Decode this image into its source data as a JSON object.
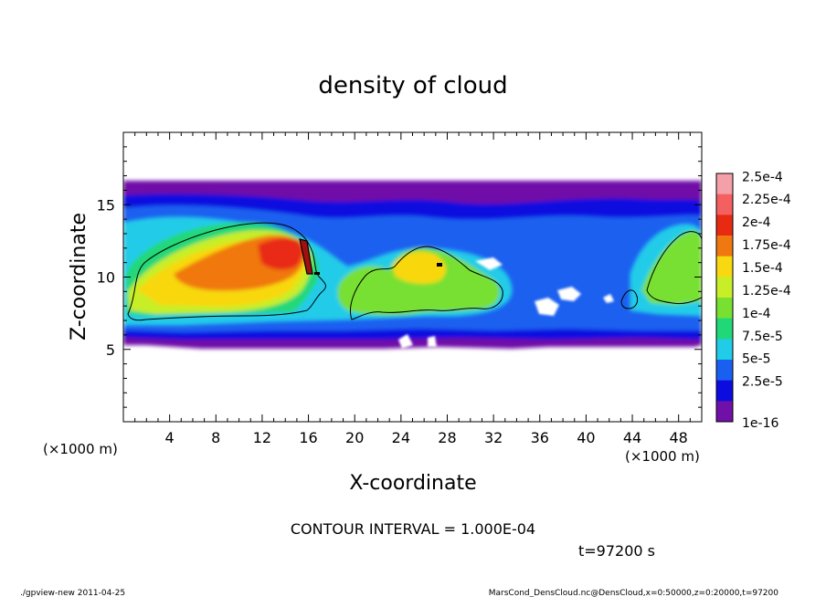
{
  "chart_data": {
    "type": "heatmap",
    "title": "density of cloud",
    "xlabel": "X-coordinate",
    "ylabel": "Z-coordinate",
    "x_unit_label": "(×1000 m)",
    "x_unit_label_right": "(×1000 m)",
    "xlim": [
      0,
      50
    ],
    "ylim": [
      0,
      20
    ],
    "x_ticks": [
      4,
      8,
      12,
      16,
      20,
      24,
      28,
      32,
      36,
      40,
      44,
      48
    ],
    "y_ticks": [
      5,
      10,
      15
    ],
    "colorbar": {
      "labels": [
        "2.5e-4",
        "2.25e-4",
        "2e-4",
        "1.75e-4",
        "1.5e-4",
        "1.25e-4",
        "1e-4",
        "7.5e-5",
        "5e-5",
        "2.5e-5",
        "1e-16"
      ],
      "colors": [
        "#f4a0a8",
        "#f46060",
        "#e82a12",
        "#f07810",
        "#f8d810",
        "#c8ee28",
        "#78e030",
        "#20d878",
        "#20cce8",
        "#1a60f0",
        "#0c0ce0",
        "#7010a8"
      ]
    },
    "contour_interval_text": "CONTOUR INTERVAL = 1.000E-04",
    "time_text": "t=97200 s",
    "features": [
      {
        "name": "cloud layer",
        "x": [
          0,
          50
        ],
        "z": [
          5.3,
          16.6
        ],
        "value": "1e-16"
      },
      {
        "name": "main cloud core",
        "x": [
          0,
          16.5
        ],
        "z": [
          6.6,
          13.2
        ],
        "value": "2.25e-4"
      },
      {
        "name": "secondary cloud",
        "x": [
          17,
          33
        ],
        "z": [
          6.6,
          12.3
        ],
        "value": "1.5e-4"
      },
      {
        "name": "eastern cloud",
        "x": [
          43,
          50
        ],
        "z": [
          7,
          13.3
        ],
        "value": "1.5e-4"
      }
    ]
  },
  "footer": {
    "left": "./gpview-new   2011-04-25",
    "right": "MarsCond_DensCloud.nc@DensCloud,x=0:50000,z=0:20000,t=97200"
  }
}
